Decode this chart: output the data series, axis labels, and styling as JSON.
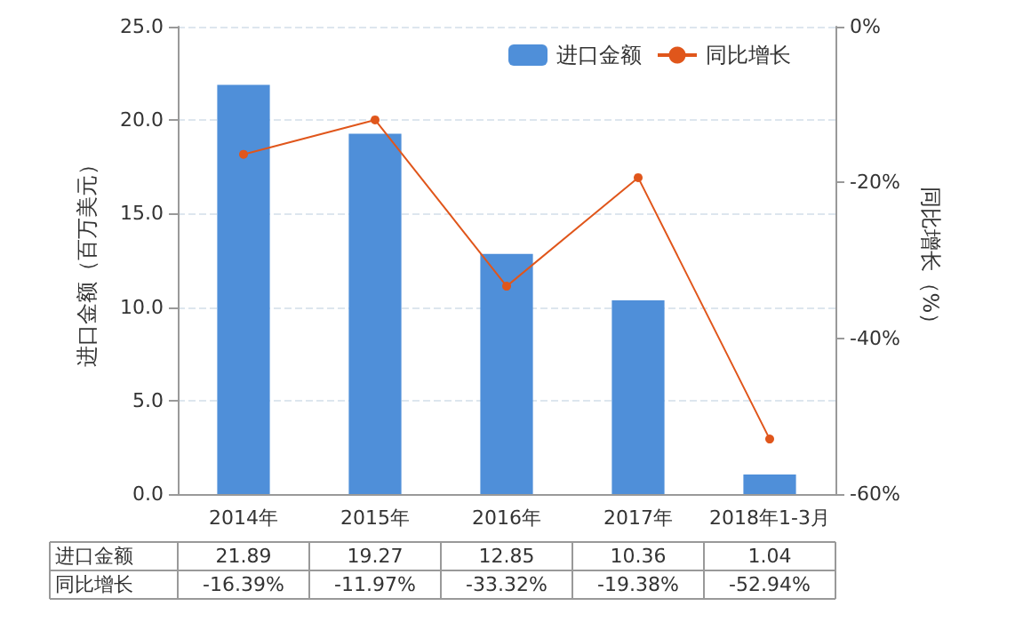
{
  "chart_data": {
    "type": "bar",
    "categories": [
      "2014年",
      "2015年",
      "2016年",
      "2017年",
      "2018年1-3月"
    ],
    "ylabel": "进口金额（百万美元）",
    "y2label": "同比增长（%）",
    "series": [
      {
        "name": "进口金额",
        "color": "#4f8fd9",
        "values": [
          21.89,
          19.27,
          12.85,
          10.36,
          1.04
        ],
        "value_labels": [
          "21.89",
          "19.27",
          "12.85",
          "10.36",
          "1.04"
        ]
      },
      {
        "name": "同比增长",
        "type": "line",
        "axis": "y2",
        "color": "#e0561b",
        "values": [
          -16.39,
          -11.97,
          -33.32,
          -19.38,
          -52.94
        ],
        "value_labels": [
          "-16.39%",
          "-11.97%",
          "-33.32%",
          "-19.38%",
          "-52.94%"
        ]
      }
    ],
    "ylim": [
      0,
      25
    ],
    "yticks": [
      {
        "value": 0,
        "label": "0.0"
      },
      {
        "value": 5,
        "label": "5.0"
      },
      {
        "value": 10,
        "label": "10.0"
      },
      {
        "value": 15,
        "label": "15.0"
      },
      {
        "value": 20,
        "label": "20.0"
      },
      {
        "value": 25,
        "label": "25.0"
      }
    ],
    "y2lim": [
      -60,
      0
    ],
    "y2ticks": [
      {
        "value": -60,
        "label": "-60%"
      },
      {
        "value": -40,
        "label": "-40%"
      },
      {
        "value": -20,
        "label": "-20%"
      },
      {
        "value": 0,
        "label": "0%"
      }
    ],
    "grid": "y",
    "legend": "top right",
    "marker": "circle",
    "line_style": "solid"
  }
}
